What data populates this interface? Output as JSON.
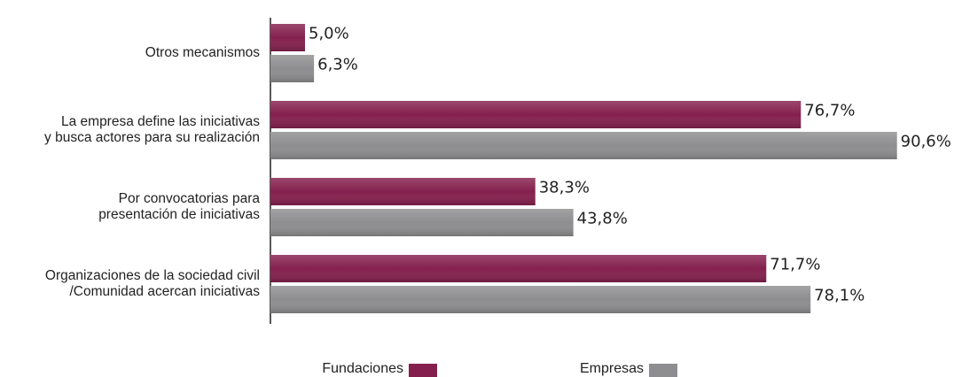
{
  "chart_data": {
    "type": "bar",
    "orientation": "horizontal",
    "categories": [
      [
        "Otros mecanismos"
      ],
      [
        "La empresa define las iniciativas",
        "y busca actores para su realización"
      ],
      [
        "Por convocatorias para",
        "presentación de iniciativas"
      ],
      [
        "Organizaciones de la sociedad civil",
        "/Comunidad acercan iniciativas"
      ]
    ],
    "series": [
      {
        "name": "Fundaciones",
        "color": "#85204e",
        "values": [
          5.0,
          76.7,
          38.3,
          71.7
        ],
        "value_labels": [
          "5,0%",
          "76,7%",
          "38,3%",
          "71,7%"
        ]
      },
      {
        "name": "Empresas",
        "color": "#8e8e90",
        "values": [
          6.3,
          90.6,
          43.8,
          78.1
        ],
        "value_labels": [
          "6,3%",
          "90,6%",
          "43,8%",
          "78,1%"
        ]
      }
    ],
    "xlim": [
      0,
      100
    ],
    "legend": "bottom"
  }
}
